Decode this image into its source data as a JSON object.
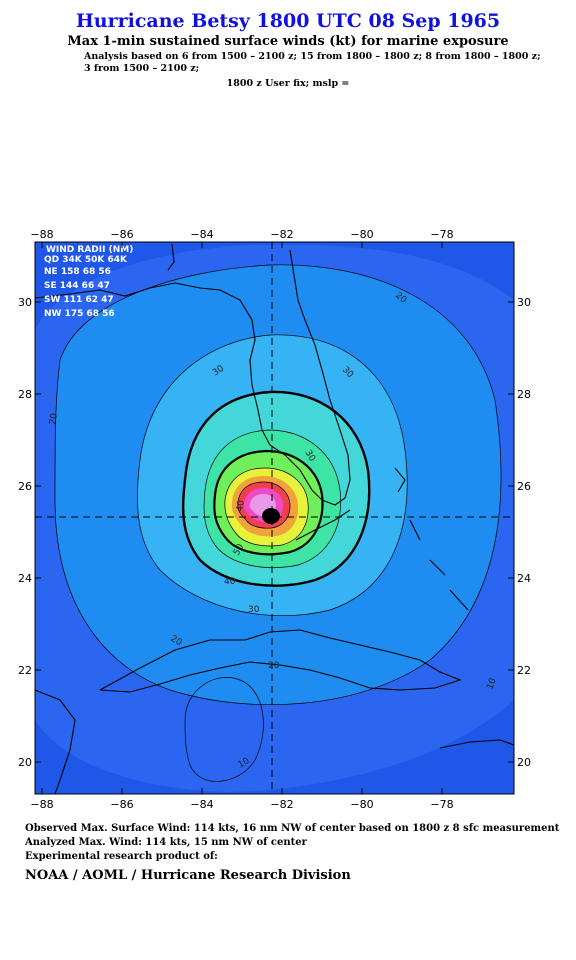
{
  "header": {
    "title": "Hurricane Betsy 1800 UTC 08 Sep 1965",
    "subtitle": "Max 1-min sustained surface winds (kt) for marine exposure",
    "analysis_line1": "Analysis based on  6 from 1500 – 2100 z;  15 from 1800 – 1800 z;  8 from 1800 – 1800 z;",
    "analysis_line2": "3 from 1500 – 2100 z;",
    "userfix": "1800 z User fix; mslp ="
  },
  "map": {
    "lon_ticks": [
      "−88",
      "−86",
      "−84",
      "−82",
      "−80",
      "−78"
    ],
    "lat_ticks": [
      "30",
      "28",
      "26",
      "24",
      "22",
      "20"
    ],
    "contour_labels": [
      "20",
      "20",
      "20",
      "20",
      "10",
      "10",
      "30",
      "30",
      "30",
      "30",
      "40",
      "40",
      "50"
    ],
    "wind_radii": {
      "header1": "WIND RADII (NM)",
      "header2": "QD  34K  50K  64K",
      "rows": [
        "NE  158   68   56",
        "SE  144   66   47",
        "SW  111   62   47",
        "NW  175   68   56"
      ]
    },
    "colors": {
      "background_wind": "#1f57e8",
      "land_outline": "#000000"
    }
  },
  "footer": {
    "observed": "Observed Max. Surface Wind: 114 kts, 16 nm NW of center based on 1800 z 8 sfc measurement",
    "analyzed": "Analyzed Max. Wind: 114 kts, 15 nm NW of center",
    "experimental": "Experimental research product of:",
    "agency": "NOAA / AOML / Hurricane Research Division"
  }
}
